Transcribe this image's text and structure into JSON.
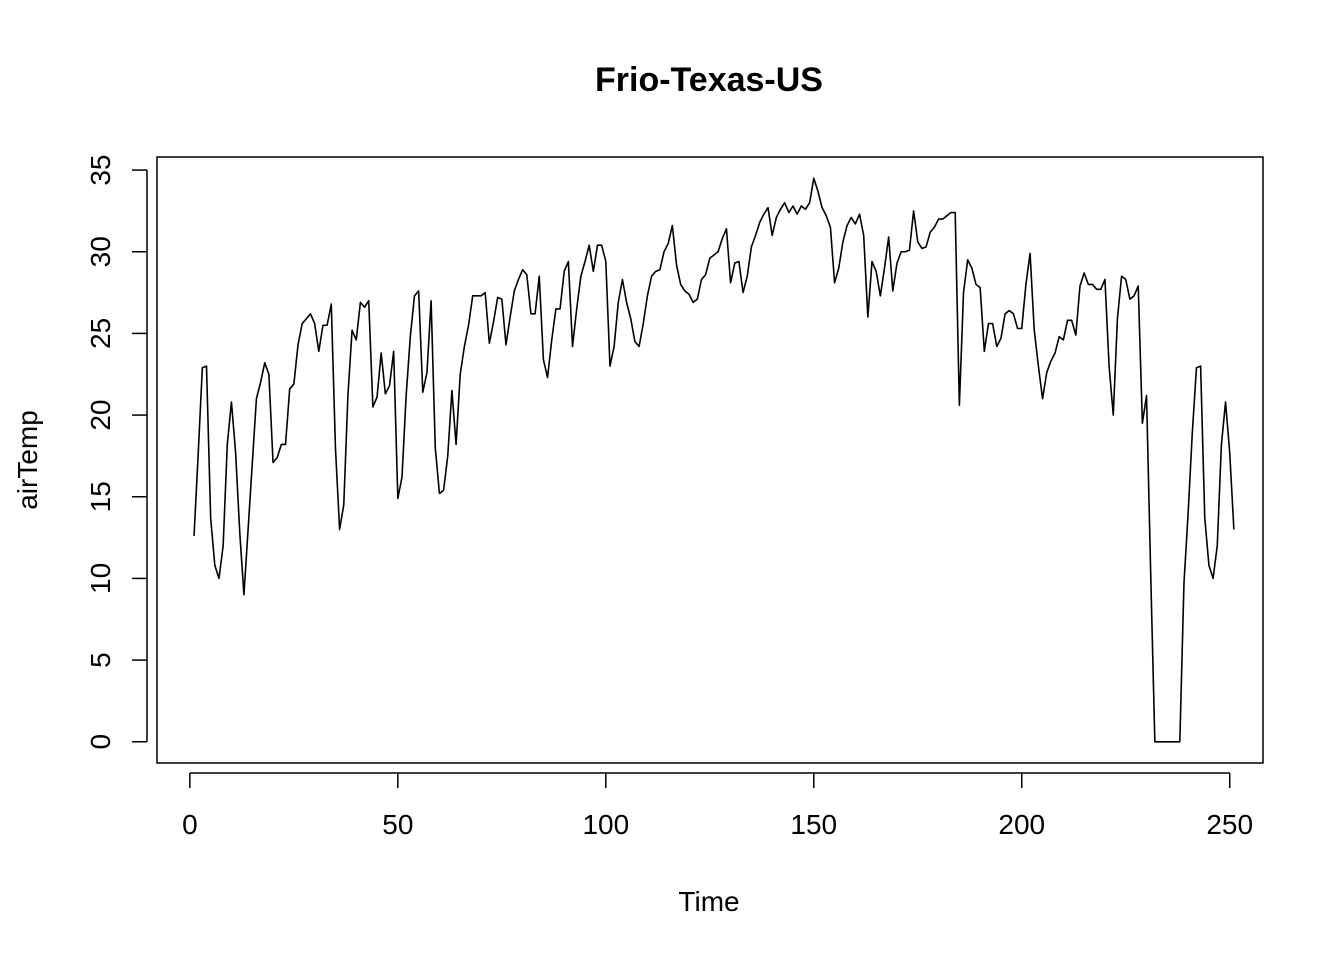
{
  "chart_data": {
    "type": "line",
    "title": "Frio-Texas-US",
    "xlabel": "Time",
    "ylabel": "airTemp",
    "xlim": [
      -7.9,
      258
    ],
    "ylim": [
      -1.3,
      35.8
    ],
    "x_ticks": [
      0,
      50,
      100,
      150,
      200,
      250
    ],
    "y_ticks": [
      0,
      5,
      10,
      15,
      20,
      25,
      30,
      35
    ],
    "grid": false,
    "line_color": "#000000",
    "series": [
      {
        "x_start": 1,
        "values": [
          12.6,
          17.6,
          22.9,
          23.0,
          13.7,
          10.8,
          10.0,
          12.0,
          18.2,
          20.8,
          17.7,
          12.8,
          9.0,
          13.0,
          17.0,
          21.0,
          22.0,
          23.2,
          22.5,
          17.1,
          17.4,
          18.2,
          18.2,
          21.6,
          21.9,
          24.3,
          25.6,
          25.9,
          26.2,
          25.6,
          23.9,
          25.5,
          25.5,
          26.8,
          18.0,
          13.0,
          14.5,
          21.2,
          25.2,
          24.6,
          26.9,
          26.6,
          27.0,
          20.5,
          21.1,
          23.8,
          21.3,
          21.8,
          23.9,
          14.9,
          16.2,
          21.2,
          24.8,
          27.3,
          27.6,
          21.4,
          22.6,
          27.0,
          18.0,
          15.2,
          15.4,
          17.5,
          21.5,
          18.2,
          22.5,
          24.2,
          25.5,
          27.3,
          27.3,
          27.3,
          27.5,
          24.4,
          25.7,
          27.2,
          27.1,
          24.3,
          26.0,
          27.6,
          28.3,
          28.9,
          28.6,
          26.2,
          26.2,
          28.5,
          23.4,
          22.3,
          24.6,
          26.5,
          26.5,
          28.8,
          29.4,
          24.2,
          26.5,
          28.5,
          29.4,
          30.4,
          28.8,
          30.4,
          30.4,
          29.4,
          23.0,
          24.2,
          26.9,
          28.3,
          26.9,
          25.9,
          24.5,
          24.2,
          25.6,
          27.3,
          28.5,
          28.8,
          28.9,
          30.0,
          30.5,
          31.6,
          29.2,
          28.0,
          27.6,
          27.4,
          26.9,
          27.1,
          28.3,
          28.6,
          29.6,
          29.8,
          30.0,
          30.8,
          31.4,
          28.1,
          29.3,
          29.4,
          27.5,
          28.5,
          30.3,
          31.0,
          31.8,
          32.3,
          32.7,
          31.0,
          32.1,
          32.6,
          33.0,
          32.4,
          32.8,
          32.3,
          32.8,
          32.6,
          33.0,
          34.5,
          33.7,
          32.7,
          32.2,
          31.5,
          28.1,
          29.0,
          30.6,
          31.6,
          32.1,
          31.7,
          32.3,
          31.0,
          26.0,
          29.4,
          28.8,
          27.3,
          29.0,
          30.9,
          27.6,
          29.3,
          30.0,
          30.0,
          30.1,
          32.5,
          30.6,
          30.2,
          30.3,
          31.2,
          31.5,
          32.0,
          32.0,
          32.2,
          32.4,
          32.4,
          20.6,
          27.5,
          29.5,
          29.0,
          28.0,
          27.8,
          23.9,
          25.6,
          25.6,
          24.2,
          24.7,
          26.2,
          26.4,
          26.2,
          25.3,
          25.3,
          28.0,
          29.9,
          25.2,
          23.0,
          21.0,
          22.6,
          23.3,
          23.8,
          24.8,
          24.6,
          25.8,
          25.8,
          24.9,
          27.9,
          28.7,
          28.0,
          28.0,
          27.7,
          27.7,
          28.3,
          23.0,
          20.0,
          25.9,
          28.5,
          28.3,
          27.1,
          27.3,
          27.9,
          19.5,
          21.2,
          10.3,
          0,
          0,
          0,
          0,
          0,
          0,
          0,
          9.7,
          14.0,
          18.9,
          22.9,
          23.0,
          13.7,
          10.8,
          10.0,
          12.0,
          18.2,
          20.8,
          17.7,
          13.0
        ]
      }
    ]
  }
}
